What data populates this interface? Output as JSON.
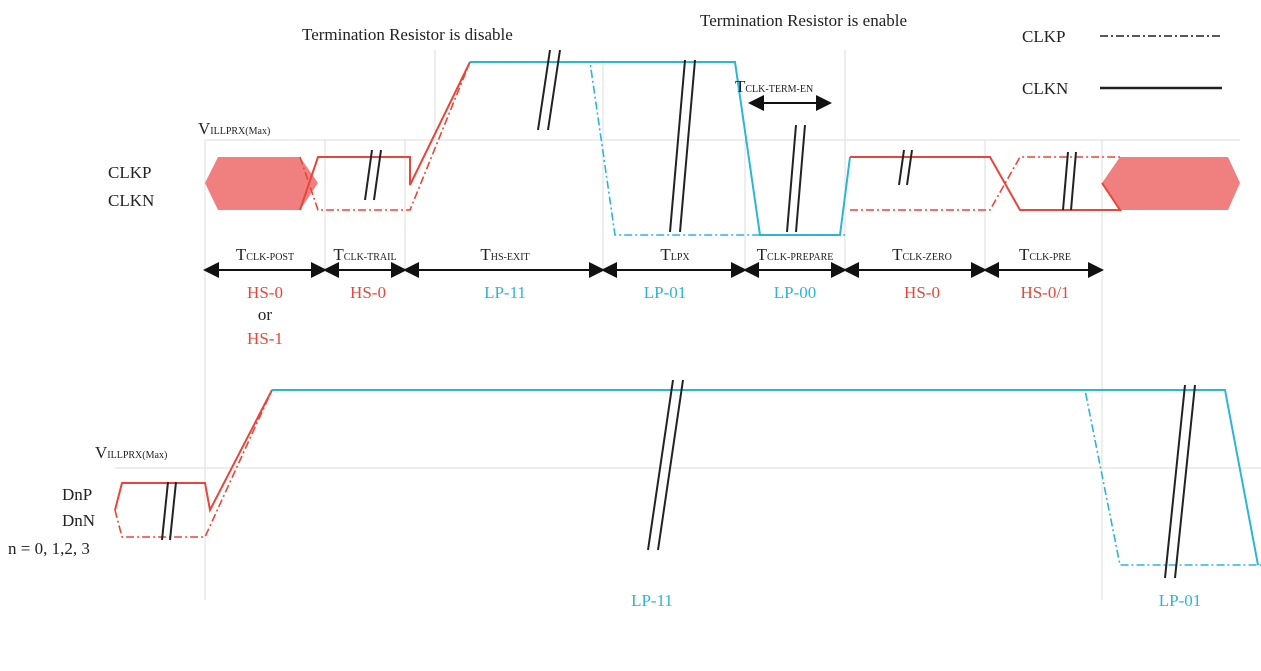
{
  "annotations": {
    "term_disable": "Termination Resistor is disable",
    "term_enable": "Termination Resistor is enable"
  },
  "legend": [
    "CLKP",
    "CLKN"
  ],
  "thresholds": [
    {
      "base": "V",
      "sub": "ILLPRX(Max)"
    },
    {
      "base": "V",
      "sub": "ILLPRX(Max)"
    }
  ],
  "clock_labels": [
    "CLKP",
    "CLKN"
  ],
  "data_labels": [
    "DnP",
    "DnN",
    "n = 0, 1,2, 3"
  ],
  "term_en": {
    "base": "T",
    "sub": "CLK-TERM-EN"
  },
  "intervals": [
    {
      "base": "T",
      "sub": "CLK-POST",
      "states": [
        "HS-0",
        "or",
        "HS-1"
      ]
    },
    {
      "base": "T",
      "sub": "CLK-TRAIL",
      "states": [
        "HS-0"
      ]
    },
    {
      "base": "T",
      "sub": "HS-EXIT",
      "states": [
        "LP-11"
      ]
    },
    {
      "base": "T",
      "sub": "LPX",
      "states": [
        "LP-01"
      ]
    },
    {
      "base": "T",
      "sub": "CLK-PREPARE",
      "states": [
        "LP-00"
      ]
    },
    {
      "base": "T",
      "sub": "CLK-ZERO",
      "states": [
        "HS-0"
      ]
    },
    {
      "base": "T",
      "sub": "CLK-PRE",
      "states": [
        "HS-0/1"
      ]
    }
  ],
  "data_states": [
    "LP-11",
    "LP-01"
  ]
}
